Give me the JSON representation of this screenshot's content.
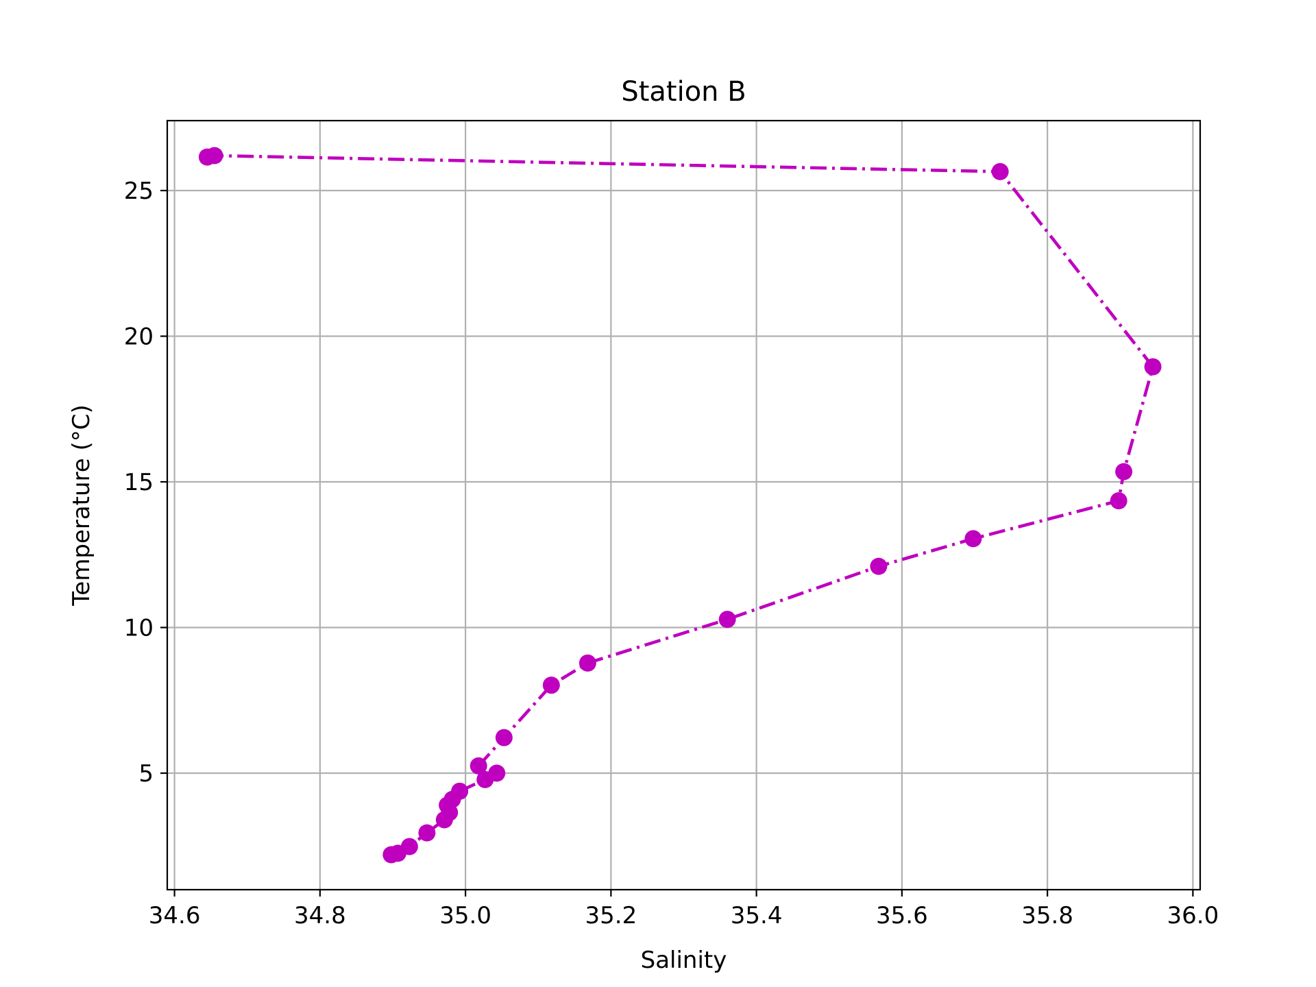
{
  "chart_data": {
    "type": "line",
    "title": "Station B",
    "xlabel": "Salinity",
    "ylabel": "Temperature (°C)",
    "xlim": [
      34.59,
      36.01
    ],
    "ylim": [
      1.0,
      27.4
    ],
    "xticks": [
      "34.6",
      "34.8",
      "35.0",
      "35.2",
      "35.4",
      "35.6",
      "35.8",
      "36.0"
    ],
    "yticks": [
      "5",
      "10",
      "15",
      "20",
      "25"
    ],
    "grid": true,
    "colors": {
      "series": "#bf00bf",
      "grid": "#b0b0b0",
      "axes": "#000000"
    },
    "series": [
      {
        "line_style": "dash-dot",
        "marker": "circle",
        "points": [
          [
            34.645,
            26.15
          ],
          [
            34.655,
            26.2
          ],
          [
            35.735,
            25.65
          ],
          [
            35.945,
            18.95
          ],
          [
            35.905,
            15.35
          ],
          [
            35.898,
            14.35
          ],
          [
            35.698,
            13.05
          ],
          [
            35.568,
            12.1
          ],
          [
            35.36,
            10.28
          ],
          [
            35.168,
            8.78
          ],
          [
            35.118,
            8.02
          ],
          [
            35.053,
            6.22
          ],
          [
            35.018,
            5.25
          ],
          [
            35.043,
            5.0
          ],
          [
            35.027,
            4.78
          ],
          [
            34.992,
            4.38
          ],
          [
            34.982,
            4.1
          ],
          [
            34.975,
            3.9
          ],
          [
            34.978,
            3.65
          ],
          [
            34.971,
            3.4
          ],
          [
            34.947,
            2.95
          ],
          [
            34.923,
            2.48
          ],
          [
            34.907,
            2.25
          ],
          [
            34.898,
            2.2
          ]
        ]
      }
    ]
  }
}
